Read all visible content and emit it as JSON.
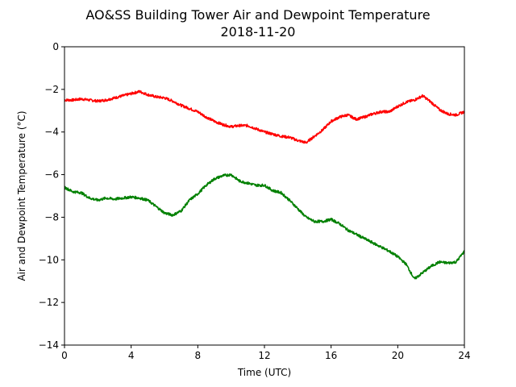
{
  "chart_data": {
    "type": "line",
    "title": "AO&SS Building Tower Air and Dewpoint Temperature",
    "subtitle": "2018-11-20",
    "xlabel": "Time (UTC)",
    "ylabel": "Air and Dewpoint Temperature (°C)",
    "xlim": [
      0,
      24
    ],
    "ylim": [
      -14,
      0
    ],
    "xticks": [
      "0",
      "4",
      "8",
      "12",
      "16",
      "20",
      "24"
    ],
    "yticks": [
      "0",
      "−2",
      "−4",
      "−6",
      "−8",
      "−10",
      "−12",
      "−14"
    ],
    "grid": false,
    "legend": "none",
    "series": [
      {
        "color": "#ff0000",
        "x": [
          0,
          0.5,
          1,
          1.5,
          2,
          2.5,
          3,
          3.5,
          4,
          4.5,
          5,
          5.5,
          6,
          6.5,
          7,
          7.5,
          8,
          8.5,
          9,
          9.5,
          10,
          10.5,
          11,
          11.5,
          12,
          12.5,
          13,
          13.5,
          14,
          14.5,
          15,
          15.5,
          16,
          16.5,
          17,
          17.5,
          18,
          18.5,
          19,
          19.5,
          20,
          20.5,
          21,
          21.5,
          22,
          22.5,
          23,
          23.5,
          24
        ],
        "y": [
          -2.5,
          -2.5,
          -2.45,
          -2.5,
          -2.55,
          -2.5,
          -2.4,
          -2.3,
          -2.2,
          -2.1,
          -2.25,
          -2.35,
          -2.4,
          -2.55,
          -2.75,
          -2.9,
          -3.05,
          -3.3,
          -3.5,
          -3.65,
          -3.75,
          -3.7,
          -3.7,
          -3.85,
          -4.0,
          -4.1,
          -4.2,
          -4.25,
          -4.4,
          -4.5,
          -4.2,
          -3.9,
          -3.5,
          -3.3,
          -3.2,
          -3.4,
          -3.3,
          -3.15,
          -3.05,
          -3.05,
          -2.8,
          -2.6,
          -2.5,
          -2.3,
          -2.6,
          -2.95,
          -3.15,
          -3.2,
          -3.05
        ]
      },
      {
        "color": "#008000",
        "x": [
          0,
          0.5,
          1,
          1.5,
          2,
          2.5,
          3,
          3.5,
          4,
          4.5,
          5,
          5.5,
          6,
          6.5,
          7,
          7.5,
          8,
          8.5,
          9,
          9.5,
          10,
          10.5,
          11,
          11.5,
          12,
          12.5,
          13,
          13.5,
          14,
          14.5,
          15,
          15.5,
          16,
          16.5,
          17,
          17.5,
          18,
          18.5,
          19,
          19.5,
          20,
          20.5,
          21,
          21.5,
          22,
          22.5,
          23,
          23.5,
          24
        ],
        "y": [
          -6.6,
          -6.8,
          -6.85,
          -7.1,
          -7.2,
          -7.1,
          -7.15,
          -7.1,
          -7.05,
          -7.1,
          -7.2,
          -7.5,
          -7.8,
          -7.9,
          -7.7,
          -7.2,
          -6.9,
          -6.5,
          -6.2,
          -6.05,
          -6.0,
          -6.3,
          -6.4,
          -6.5,
          -6.5,
          -6.75,
          -6.85,
          -7.2,
          -7.6,
          -8.0,
          -8.2,
          -8.2,
          -8.1,
          -8.3,
          -8.6,
          -8.8,
          -9.0,
          -9.2,
          -9.4,
          -9.6,
          -9.85,
          -10.2,
          -10.9,
          -10.6,
          -10.3,
          -10.1,
          -10.15,
          -10.1,
          -9.6
        ]
      }
    ]
  }
}
